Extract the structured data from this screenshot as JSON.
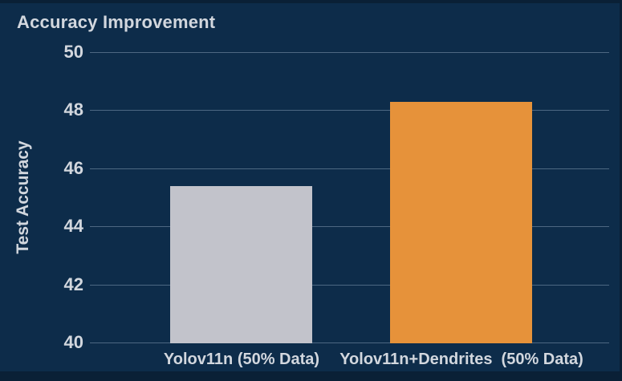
{
  "page": {
    "background": "#0d2c4a",
    "edge_strip_color": "#0a2036",
    "text_color": "#d2d7de",
    "gridline_color": "rgba(175,195,215,0.40)"
  },
  "chart_data": {
    "type": "bar",
    "title": "Accuracy Improvement",
    "xlabel": "",
    "ylabel": "Test Accuracy",
    "categories": [
      "Yolov11n (50% Data)",
      "Yolov11n+Dendrites  (50% Data)"
    ],
    "values": [
      45.4,
      48.3
    ],
    "bar_colors": [
      "#c2c3cb",
      "#e6923a"
    ],
    "ylim": [
      40,
      50
    ],
    "yticks": [
      40,
      42,
      44,
      46,
      48,
      50
    ],
    "grid": true,
    "legend": "none"
  }
}
